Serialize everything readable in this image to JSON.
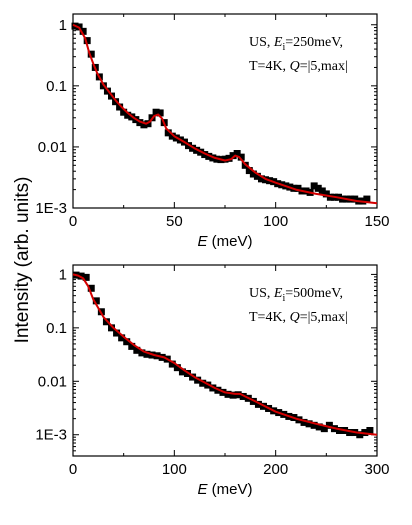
{
  "figure": {
    "ylabel": "Intensity (arb. units)",
    "colors": {
      "data": "#000000",
      "fit": "#d40000",
      "axes": "#000000"
    }
  },
  "chart_data": [
    {
      "type": "scatter",
      "id": "panel_top",
      "legend": {
        "line1_prefix": "US, ",
        "line1_var": "E",
        "line1_sub": "i",
        "line1_rest": "=250meV,",
        "line2_prefix": "T=4K, ",
        "line2_var": "Q",
        "line2_rest": "=|5,max|",
        "placement": "top-right"
      },
      "xlabel": "E",
      "xunit": " (meV)",
      "xlim": [
        0,
        150
      ],
      "ylim": [
        0.001,
        1.5
      ],
      "yscale": "log",
      "xticks": [
        0,
        50,
        100,
        150
      ],
      "xtick_labels": [
        "0",
        "50",
        "100",
        "150"
      ],
      "yticks": [
        0.001,
        0.01,
        0.1,
        1
      ],
      "ytick_labels": [
        "1E-3",
        "0.01",
        "0.1",
        "1"
      ],
      "series": [
        {
          "kind": "points",
          "x": [
            1,
            3,
            5,
            7,
            9,
            11,
            13,
            15,
            17,
            19,
            21,
            23,
            25,
            27,
            29,
            31,
            33,
            35,
            37,
            39,
            41,
            43,
            45,
            47,
            49,
            51,
            53,
            55,
            57,
            59,
            61,
            63,
            65,
            67,
            69,
            71,
            73,
            75,
            77,
            79,
            81,
            83,
            85,
            87,
            89,
            91,
            93,
            95,
            97,
            99,
            101,
            103,
            105,
            107,
            109,
            111,
            113,
            115,
            117,
            119,
            121,
            123,
            125,
            127,
            129,
            131,
            133,
            135,
            137,
            139,
            141,
            143,
            145
          ],
          "y": [
            0.95,
            0.92,
            0.78,
            0.55,
            0.33,
            0.2,
            0.14,
            0.1,
            0.082,
            0.068,
            0.055,
            0.045,
            0.037,
            0.033,
            0.031,
            0.028,
            0.025,
            0.023,
            0.024,
            0.03,
            0.037,
            0.036,
            0.025,
            0.017,
            0.015,
            0.014,
            0.013,
            0.012,
            0.0105,
            0.0095,
            0.0088,
            0.0082,
            0.0075,
            0.007,
            0.0066,
            0.0063,
            0.0062,
            0.0063,
            0.0065,
            0.0072,
            0.0078,
            0.0068,
            0.005,
            0.0041,
            0.0036,
            0.0033,
            0.003,
            0.0029,
            0.0028,
            0.0027,
            0.0025,
            0.0024,
            0.0023,
            0.0022,
            0.0021,
            0.0021,
            0.0019,
            0.0019,
            0.0018,
            0.0023,
            0.0021,
            0.0019,
            0.0017,
            0.0015,
            0.0015,
            0.0015,
            0.0014,
            0.0014,
            0.0014,
            0.0014,
            0.0013,
            0.0013,
            0.0014
          ]
        },
        {
          "kind": "line",
          "x": [
            0,
            3,
            6,
            8,
            10,
            12,
            15,
            18,
            21,
            24,
            27,
            30,
            33,
            36,
            38,
            40,
            42,
            44,
            46,
            50,
            55,
            60,
            65,
            70,
            75,
            78,
            80,
            82,
            85,
            90,
            95,
            100,
            110,
            120,
            130,
            140,
            150
          ],
          "y": [
            1.0,
            0.9,
            0.6,
            0.35,
            0.23,
            0.16,
            0.105,
            0.078,
            0.058,
            0.045,
            0.036,
            0.03,
            0.026,
            0.024,
            0.026,
            0.032,
            0.034,
            0.029,
            0.02,
            0.015,
            0.012,
            0.0095,
            0.0078,
            0.0066,
            0.006,
            0.0063,
            0.0072,
            0.0068,
            0.0052,
            0.0038,
            0.003,
            0.0026,
            0.002,
            0.0017,
            0.0015,
            0.0013,
            0.0012
          ]
        }
      ]
    },
    {
      "type": "scatter",
      "id": "panel_bottom",
      "legend": {
        "line1_prefix": "US, ",
        "line1_var": "E",
        "line1_sub": "i",
        "line1_rest": "=500meV,",
        "line2_prefix": "T=4K, ",
        "line2_var": "Q",
        "line2_rest": "=|5,max|",
        "placement": "top-right"
      },
      "xlabel": "E",
      "xunit": " (meV)",
      "xlim": [
        0,
        300
      ],
      "ylim": [
        0.0004,
        1.5
      ],
      "yscale": "log",
      "xticks": [
        0,
        100,
        200,
        300
      ],
      "xtick_labels": [
        "0",
        "100",
        "200",
        "300"
      ],
      "yticks": [
        0.001,
        0.01,
        0.1,
        1
      ],
      "ytick_labels": [
        "1E-3",
        "0.01",
        "0.1",
        "1"
      ],
      "series": [
        {
          "kind": "points",
          "x": [
            3,
            8,
            13,
            18,
            23,
            28,
            33,
            38,
            43,
            48,
            53,
            58,
            63,
            68,
            73,
            78,
            83,
            88,
            93,
            98,
            103,
            108,
            113,
            118,
            123,
            128,
            133,
            138,
            143,
            148,
            153,
            158,
            163,
            168,
            173,
            178,
            183,
            188,
            193,
            198,
            203,
            208,
            213,
            218,
            223,
            228,
            233,
            238,
            243,
            248,
            253,
            258,
            263,
            268,
            273,
            278,
            283,
            288,
            293
          ],
          "y": [
            0.97,
            0.93,
            0.88,
            0.55,
            0.32,
            0.2,
            0.13,
            0.1,
            0.08,
            0.065,
            0.055,
            0.045,
            0.038,
            0.034,
            0.032,
            0.031,
            0.03,
            0.028,
            0.026,
            0.021,
            0.018,
            0.015,
            0.014,
            0.012,
            0.0105,
            0.0092,
            0.0085,
            0.0075,
            0.0068,
            0.0062,
            0.0057,
            0.0055,
            0.0056,
            0.0052,
            0.0048,
            0.0042,
            0.0037,
            0.0034,
            0.0031,
            0.0028,
            0.0026,
            0.0024,
            0.0022,
            0.0021,
            0.0019,
            0.0017,
            0.0016,
            0.0015,
            0.0014,
            0.0013,
            0.0015,
            0.0013,
            0.0012,
            0.0012,
            0.0011,
            0.0011,
            0.001,
            0.0011,
            0.0012
          ]
        },
        {
          "kind": "line",
          "x": [
            0,
            5,
            10,
            15,
            20,
            30,
            40,
            50,
            60,
            70,
            80,
            90,
            100,
            110,
            120,
            130,
            140,
            150,
            160,
            165,
            170,
            180,
            200,
            220,
            240,
            260,
            280,
            300
          ],
          "y": [
            1.0,
            0.95,
            0.85,
            0.6,
            0.34,
            0.16,
            0.1,
            0.068,
            0.048,
            0.036,
            0.031,
            0.028,
            0.022,
            0.016,
            0.012,
            0.0095,
            0.0075,
            0.0062,
            0.0058,
            0.0058,
            0.0052,
            0.0042,
            0.0027,
            0.002,
            0.0016,
            0.0013,
            0.0011,
            0.001
          ]
        }
      ]
    }
  ]
}
